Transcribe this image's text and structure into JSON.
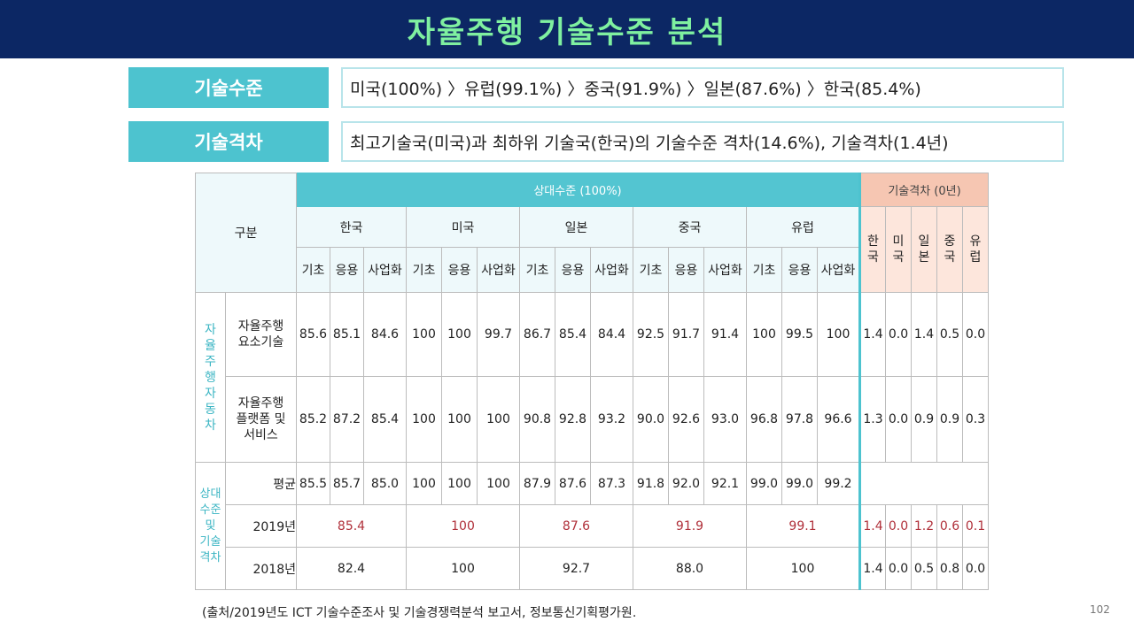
{
  "title": "자율주행 기술수준 분석",
  "summary": [
    {
      "label": "기술수준",
      "value": "미국(100%) 〉유럽(99.1%) 〉중국(91.9%) 〉일본(87.6%) 〉한국(85.4%)"
    },
    {
      "label": "기술격차",
      "value": "최고기술국(미국)과 최하위 기술국(한국)의 기술수준 격차(14.6%), 기술격차(1.4년)"
    }
  ],
  "table": {
    "gubun": "구분",
    "relative_header": "상대수준 (100%)",
    "gap_header": "기술격차 (0년)",
    "countries": [
      "한국",
      "미국",
      "일본",
      "중국",
      "유럽"
    ],
    "stages": [
      "기초",
      "응용",
      "사업화"
    ],
    "gap_countries": [
      "한국",
      "미국",
      "일본",
      "중국",
      "유럽"
    ],
    "category_a": "자율주행자동차",
    "category_b": "상대수준\n및\n기술격차",
    "rows": [
      {
        "label": "자율주행\n요소기술",
        "values": [
          "85.6",
          "85.1",
          "84.6",
          "100",
          "100",
          "99.7",
          "86.7",
          "85.4",
          "84.4",
          "92.5",
          "91.7",
          "91.4",
          "100",
          "99.5",
          "100"
        ],
        "gaps": [
          "1.4",
          "0.0",
          "1.4",
          "0.5",
          "0.0"
        ]
      },
      {
        "label": "자율주행\n플랫폼 및\n서비스",
        "values": [
          "85.2",
          "87.2",
          "85.4",
          "100",
          "100",
          "100",
          "90.8",
          "92.8",
          "93.2",
          "90.0",
          "92.6",
          "93.0",
          "96.8",
          "97.8",
          "96.6"
        ],
        "gaps": [
          "1.3",
          "0.0",
          "0.9",
          "0.9",
          "0.3"
        ]
      }
    ],
    "avg": {
      "label": "평균",
      "values": [
        "85.5",
        "85.7",
        "85.0",
        "100",
        "100",
        "100",
        "87.9",
        "87.6",
        "87.3",
        "91.8",
        "92.0",
        "92.1",
        "99.0",
        "99.0",
        "99.2"
      ]
    },
    "y2019": {
      "label": "2019년",
      "values": [
        "85.4",
        "100",
        "87.6",
        "91.9",
        "99.1"
      ],
      "gaps": [
        "1.4",
        "0.0",
        "1.2",
        "0.6",
        "0.1"
      ]
    },
    "y2018": {
      "label": "2018년",
      "values": [
        "82.4",
        "100",
        "92.7",
        "88.0",
        "100"
      ],
      "gaps": [
        "1.4",
        "0.0",
        "0.5",
        "0.8",
        "0.0"
      ]
    }
  },
  "colors": {
    "banner": "#0c2764",
    "title": "#7ff0a0",
    "accent": "#4dc3cf",
    "gap_header": "#f6c6b2",
    "highlight": "#b0303a"
  },
  "footer": "(출처/2019년도 ICT 기술수준조사 및 기술경쟁력분석 보고서, 정보통신기획평가원.",
  "page_number": "102"
}
